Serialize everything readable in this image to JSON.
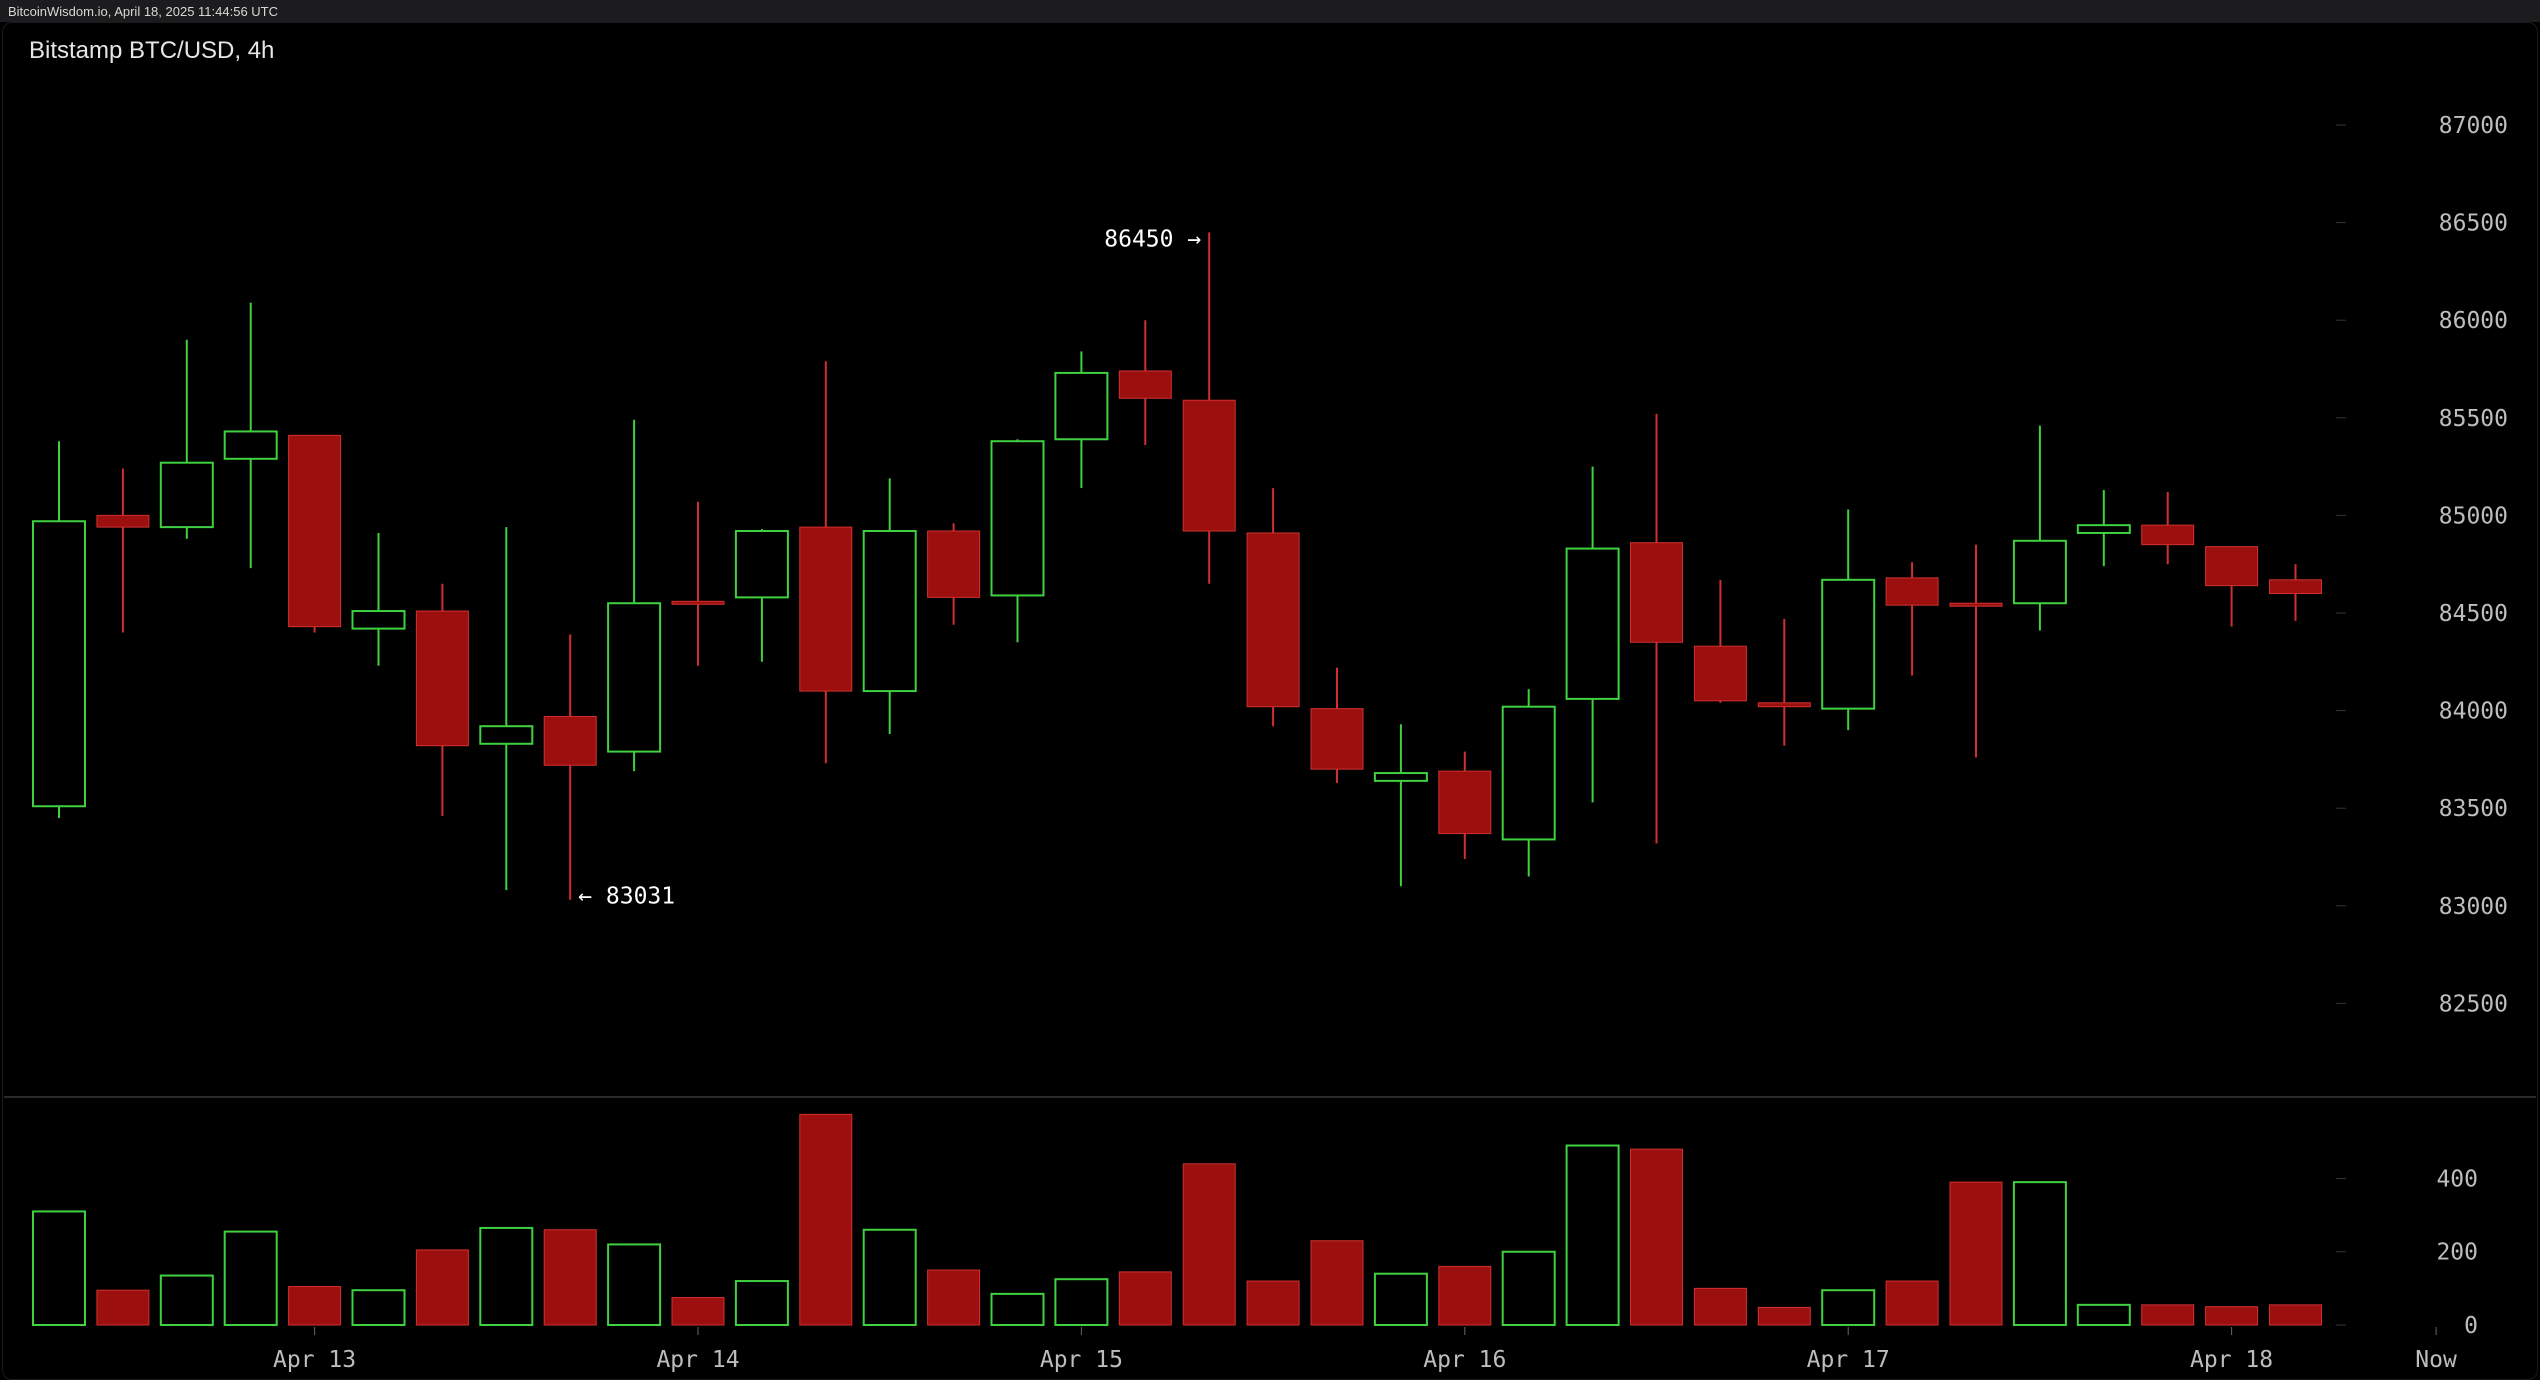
{
  "watermark": "BitcoinWisdom.io, April 18, 2025 11:44:56 UTC",
  "title": "Bitstamp BTC/USD, 4h",
  "colors": {
    "up": "#3fd13f",
    "down": "#9c0f0f",
    "down_wick": "#d03030",
    "axis_text": "#bdbdbd",
    "grid": "#333333"
  },
  "chart_data": [
    {
      "type": "candlestick",
      "title": "Bitstamp BTC/USD, 4h",
      "y_ticks": [
        82500,
        83000,
        83500,
        84000,
        84500,
        85000,
        85500,
        86000,
        86500,
        87000
      ],
      "ylim": [
        82000,
        87400
      ],
      "x_labels": [
        {
          "label": "Apr 13",
          "index": 4
        },
        {
          "label": "Apr 14",
          "index": 10
        },
        {
          "label": "Apr 15",
          "index": 16
        },
        {
          "label": "Apr 16",
          "index": 22
        },
        {
          "label": "Apr 17",
          "index": 28
        },
        {
          "label": "Apr 18",
          "index": 34
        },
        {
          "label": "Now",
          "index": 37.2
        }
      ],
      "annotations": [
        {
          "text": "86450 →",
          "index": 18,
          "value": 86450,
          "side": "left"
        },
        {
          "text": "← 83031",
          "index": 8,
          "value": 83031,
          "side": "right"
        }
      ],
      "candles": [
        {
          "o": 83510,
          "h": 85380,
          "l": 83450,
          "c": 84970
        },
        {
          "o": 85000,
          "h": 85240,
          "l": 84400,
          "c": 84940
        },
        {
          "o": 84940,
          "h": 85900,
          "l": 84880,
          "c": 85270
        },
        {
          "o": 85290,
          "h": 86090,
          "l": 84730,
          "c": 85430
        },
        {
          "o": 85410,
          "h": 85410,
          "l": 84400,
          "c": 84430
        },
        {
          "o": 84420,
          "h": 84910,
          "l": 84230,
          "c": 84510
        },
        {
          "o": 84510,
          "h": 84650,
          "l": 83460,
          "c": 83820
        },
        {
          "o": 83830,
          "h": 84940,
          "l": 83080,
          "c": 83920
        },
        {
          "o": 83970,
          "h": 84390,
          "l": 83031,
          "c": 83720
        },
        {
          "o": 83790,
          "h": 85490,
          "l": 83690,
          "c": 84550
        },
        {
          "o": 84560,
          "h": 85070,
          "l": 84230,
          "c": 84550
        },
        {
          "o": 84580,
          "h": 84930,
          "l": 84250,
          "c": 84920
        },
        {
          "o": 84940,
          "h": 85790,
          "l": 83730,
          "c": 84100
        },
        {
          "o": 84100,
          "h": 85190,
          "l": 83880,
          "c": 84920
        },
        {
          "o": 84920,
          "h": 84960,
          "l": 84440,
          "c": 84580
        },
        {
          "o": 84590,
          "h": 85390,
          "l": 84350,
          "c": 85380
        },
        {
          "o": 85390,
          "h": 85840,
          "l": 85140,
          "c": 85730
        },
        {
          "o": 85740,
          "h": 86000,
          "l": 85360,
          "c": 85600
        },
        {
          "o": 85590,
          "h": 86450,
          "l": 84650,
          "c": 84920
        },
        {
          "o": 84910,
          "h": 85140,
          "l": 83920,
          "c": 84020
        },
        {
          "o": 84010,
          "h": 84220,
          "l": 83630,
          "c": 83700
        },
        {
          "o": 83640,
          "h": 83930,
          "l": 83100,
          "c": 83680
        },
        {
          "o": 83690,
          "h": 83790,
          "l": 83240,
          "c": 83370
        },
        {
          "o": 83340,
          "h": 84110,
          "l": 83150,
          "c": 84020
        },
        {
          "o": 84060,
          "h": 85250,
          "l": 83530,
          "c": 84830
        },
        {
          "o": 84860,
          "h": 85520,
          "l": 83320,
          "c": 84350
        },
        {
          "o": 84330,
          "h": 84670,
          "l": 84040,
          "c": 84050
        },
        {
          "o": 84040,
          "h": 84470,
          "l": 83820,
          "c": 84020
        },
        {
          "o": 84010,
          "h": 85030,
          "l": 83900,
          "c": 84670
        },
        {
          "o": 84680,
          "h": 84760,
          "l": 84180,
          "c": 84540
        },
        {
          "o": 84550,
          "h": 84850,
          "l": 83760,
          "c": 84540
        },
        {
          "o": 84550,
          "h": 85460,
          "l": 84410,
          "c": 84870
        },
        {
          "o": 84910,
          "h": 85130,
          "l": 84740,
          "c": 84950
        },
        {
          "o": 84950,
          "h": 85120,
          "l": 84750,
          "c": 84850
        },
        {
          "o": 84840,
          "h": 84840,
          "l": 84430,
          "c": 84640
        },
        {
          "o": 84670,
          "h": 84750,
          "l": 84460,
          "c": 84600
        }
      ]
    },
    {
      "type": "bar",
      "title": "Volume",
      "y_ticks": [
        0,
        200,
        400
      ],
      "ylim": [
        0,
        580
      ],
      "values": [
        310,
        95,
        135,
        255,
        105,
        95,
        205,
        265,
        260,
        220,
        75,
        120,
        575,
        260,
        150,
        85,
        125,
        145,
        440,
        120,
        230,
        140,
        160,
        200,
        490,
        480,
        100,
        48,
        95,
        120,
        390,
        390,
        55,
        55,
        50,
        55
      ],
      "directions": [
        "up",
        "down",
        "up",
        "up",
        "down",
        "up",
        "down",
        "up",
        "down",
        "up",
        "down",
        "up",
        "down",
        "up",
        "down",
        "up",
        "up",
        "down",
        "down",
        "down",
        "down",
        "up",
        "down",
        "up",
        "up",
        "down",
        "down",
        "down",
        "up",
        "down",
        "down",
        "up",
        "up",
        "down",
        "down",
        "down"
      ]
    }
  ]
}
